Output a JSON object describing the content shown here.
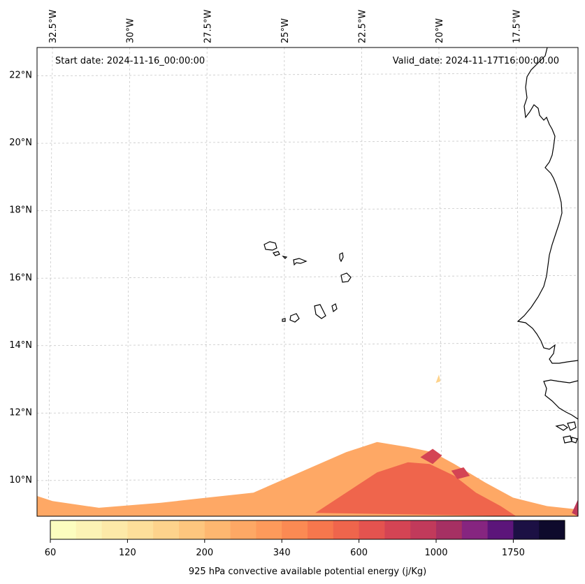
{
  "chart_data": {
    "type": "heatmap",
    "title": "",
    "start_label": "Start date: 2024-11-16_00:00:00",
    "valid_label": "Valid_date: 2024-11-17T16:00:00.00",
    "lon_ticks": [
      "32.5°W",
      "30°W",
      "27.5°W",
      "25°W",
      "22.5°W",
      "20°W",
      "17.5°W"
    ],
    "lat_ticks": [
      "22°N",
      "20°N",
      "18°N",
      "16°N",
      "14°N",
      "12°N",
      "10°N"
    ],
    "lon_values": [
      -32.5,
      -30,
      -27.5,
      -25,
      -22.5,
      -20,
      -17.5
    ],
    "lat_values": [
      22,
      20,
      18,
      16,
      14,
      12,
      10
    ],
    "xlim": [
      -33,
      -15.5
    ],
    "ylim": [
      8.9,
      22.8
    ],
    "grid": true,
    "colorbar": {
      "label": "925 hPa convective available potential energy (j/Kg)",
      "tick_labels": [
        "60",
        "120",
        "200",
        "340",
        "600",
        "1000",
        "1750"
      ],
      "levels": [
        60,
        80,
        100,
        120,
        140,
        160,
        200,
        240,
        280,
        340,
        400,
        480,
        600,
        700,
        800,
        1000,
        1200,
        1400,
        1750,
        2000,
        2500
      ],
      "colors": [
        "#fcfdbf",
        "#fcf3b5",
        "#fde9a8",
        "#fedf9a",
        "#fed38c",
        "#fec67e",
        "#feb770",
        "#fea865",
        "#fe9a5b",
        "#fb8a53",
        "#f6774d",
        "#ef654c",
        "#e4534f",
        "#d44454",
        "#c13a5b",
        "#a63063",
        "#862580",
        "#5c157a",
        "#1c1044",
        "#0e0a2c"
      ]
    },
    "cape_regions": [
      {
        "name": "southern-cape-band",
        "value": 250,
        "outline": [
          [
            -33.0,
            8.9
          ],
          [
            -33.0,
            9.5
          ],
          [
            -32.5,
            9.35
          ],
          [
            -31.0,
            9.15
          ],
          [
            -29.0,
            9.3
          ],
          [
            -27.5,
            9.45
          ],
          [
            -26.0,
            9.6
          ],
          [
            -24.5,
            10.2
          ],
          [
            -23.0,
            10.8
          ],
          [
            -22.0,
            11.1
          ],
          [
            -21.0,
            10.95
          ],
          [
            -20.2,
            10.8
          ],
          [
            -19.5,
            10.45
          ],
          [
            -18.5,
            9.9
          ],
          [
            -17.6,
            9.45
          ],
          [
            -16.5,
            9.2
          ],
          [
            -15.5,
            9.1
          ],
          [
            -15.5,
            8.9
          ]
        ]
      },
      {
        "name": "cape-moderate-core",
        "value": 480,
        "outline": [
          [
            -24.0,
            9.0
          ],
          [
            -23.0,
            9.6
          ],
          [
            -22.0,
            10.2
          ],
          [
            -21.0,
            10.5
          ],
          [
            -20.3,
            10.45
          ],
          [
            -19.5,
            10.1
          ],
          [
            -18.8,
            9.6
          ],
          [
            -18.0,
            9.2
          ],
          [
            -17.5,
            8.9
          ]
        ]
      },
      {
        "name": "cape-high-core-east",
        "value": 700,
        "outline": [
          [
            -20.6,
            10.65
          ],
          [
            -20.2,
            10.9
          ],
          [
            -19.9,
            10.7
          ],
          [
            -20.2,
            10.45
          ]
        ]
      },
      {
        "name": "cape-high-core-southeast",
        "value": 700,
        "outline": [
          [
            -19.6,
            10.25
          ],
          [
            -19.2,
            10.35
          ],
          [
            -19.0,
            10.1
          ],
          [
            -19.4,
            10.0
          ]
        ]
      },
      {
        "name": "cape-coastal-core",
        "value": 800,
        "outline": [
          [
            -15.7,
            9.0
          ],
          [
            -15.5,
            9.4
          ],
          [
            -15.5,
            8.9
          ]
        ]
      },
      {
        "name": "cape-isolated-cell",
        "value": 140,
        "outline": [
          [
            -20.1,
            12.85
          ],
          [
            -20.0,
            13.1
          ],
          [
            -19.95,
            12.9
          ]
        ]
      }
    ]
  }
}
